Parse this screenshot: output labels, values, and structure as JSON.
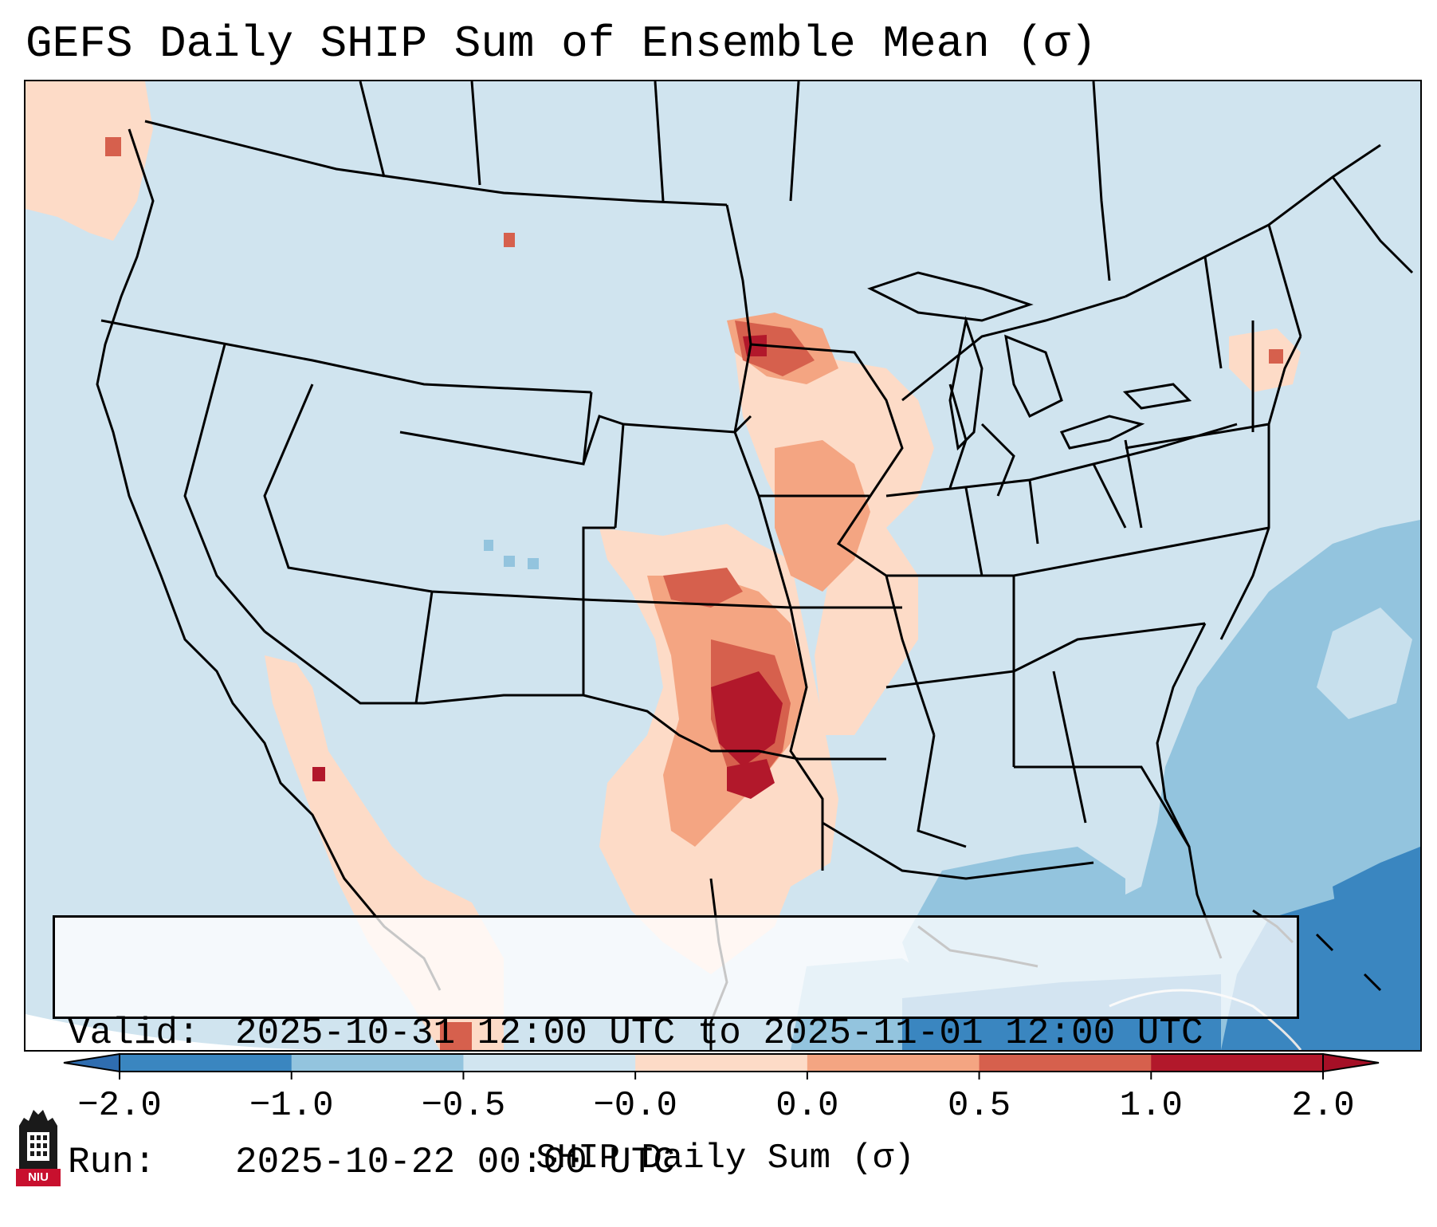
{
  "title": "GEFS Daily SHIP Sum of Ensemble Mean (σ)",
  "info": {
    "valid_key": "Valid:",
    "valid_value": "2025-10-31 12:00 UTC to 2025-11-01 12:00 UTC",
    "run_key": "Run:",
    "run_value": "2025-10-22 00:00 UTC"
  },
  "colorbar": {
    "label": "SHIP Daily Sum (σ)",
    "ticks": [
      "−2.0",
      "−1.0",
      "−0.5",
      "−0.0",
      "0.0",
      "0.5",
      "1.0",
      "2.0"
    ],
    "colors": [
      "#3a86c0",
      "#93c4de",
      "#d1e5f0",
      "#fddbc7",
      "#f4a582",
      "#d6604d",
      "#b2182b"
    ],
    "extend_low_color": "#2f6db0",
    "extend_high_color": "#a50f26"
  },
  "map": {
    "land_color": "#d0e4ef",
    "projection": "lambert-conformal",
    "region": "CONUS"
  },
  "logo": {
    "text": "NIU",
    "icon": "university-tower-icon"
  }
}
